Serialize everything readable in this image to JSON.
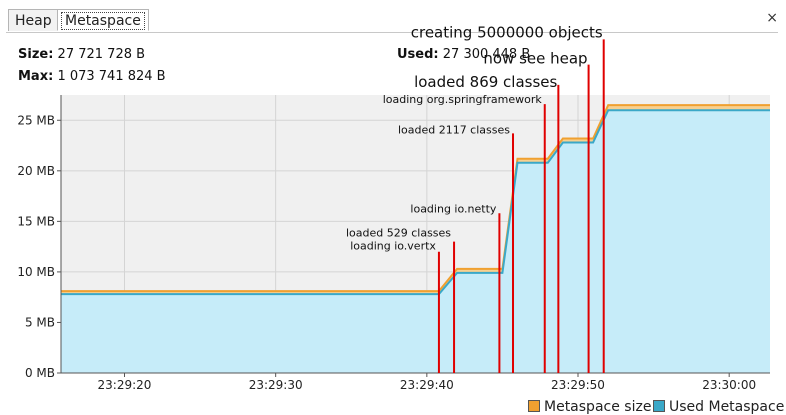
{
  "tabs": [
    {
      "label": "Heap",
      "active": false
    },
    {
      "label": "Metaspace",
      "active": true
    }
  ],
  "close_label": "×",
  "stats": {
    "size_label": "Size:",
    "size_value": "27 721 728 B",
    "max_label": "Max:",
    "max_value": "1 073 741 824 B",
    "used_label": "Used:",
    "used_value": "27 300 448 B"
  },
  "colors": {
    "metaspace_size": "#f0a030",
    "used_metaspace": "#3aa8c8",
    "used_fill": "#c6ecf9",
    "marker": "#e00000",
    "plot_bg": "#f0f0f0"
  },
  "legend": [
    {
      "label": "Metaspace size",
      "color": "#f0a030"
    },
    {
      "label": "Used Metaspace",
      "color": "#3aa8c8"
    }
  ],
  "chart_data": {
    "type": "area",
    "xlabel": "",
    "ylabel": "",
    "x_ticks": [
      "23:29:20",
      "23:29:30",
      "23:29:40",
      "23:29:50",
      "23:30:00"
    ],
    "y_ticks": [
      "0 MB",
      "5 MB",
      "10 MB",
      "15 MB",
      "20 MB",
      "25 MB"
    ],
    "ylim": [
      0,
      27.5
    ],
    "xlim_seconds": [
      15.8,
      62.7
    ],
    "grid": true,
    "legend_position": "bottom-right",
    "series": [
      {
        "name": "Metaspace size",
        "x": [
          15.8,
          40.8,
          42.0,
          45.0,
          46.0,
          48.0,
          49.0,
          51.0,
          52.0,
          62.7
        ],
        "values": [
          8.1,
          8.1,
          10.3,
          10.3,
          21.2,
          21.2,
          23.2,
          23.2,
          26.5,
          26.5
        ]
      },
      {
        "name": "Used Metaspace",
        "x": [
          15.8,
          40.8,
          42.0,
          45.0,
          46.0,
          48.0,
          49.0,
          51.0,
          52.0,
          62.7
        ],
        "values": [
          7.8,
          7.8,
          9.9,
          9.9,
          20.8,
          20.8,
          22.8,
          22.8,
          26.0,
          26.0
        ]
      }
    ],
    "annotations": [
      {
        "label": "loading io.vertx",
        "x": 40.8,
        "top": 12.0,
        "text_y": 12.2,
        "size": "small",
        "anchor": "end"
      },
      {
        "label": "loaded 529 classes",
        "x": 41.8,
        "top": 13.0,
        "text_y": 13.5,
        "size": "small",
        "anchor": "end"
      },
      {
        "label": "loading io.netty",
        "x": 44.8,
        "top": 15.8,
        "text_y": 15.9,
        "size": "small",
        "anchor": "end"
      },
      {
        "label": "loaded 2117 classes",
        "x": 45.7,
        "top": 23.7,
        "text_y": 23.7,
        "size": "small",
        "anchor": "end"
      },
      {
        "label": "loading org.springframework",
        "x": 47.8,
        "top": 26.6,
        "text_y": 26.7,
        "size": "small",
        "anchor": "end"
      },
      {
        "label": "loaded 869 classes",
        "x": 48.7,
        "top": 28.5,
        "text_y": 28.3,
        "size": "large",
        "anchor": "end"
      },
      {
        "label": "now see heap",
        "x": 50.7,
        "top": 30.5,
        "text_y": 30.6,
        "size": "large",
        "anchor": "end"
      },
      {
        "label": "creating 5000000 objects",
        "x": 51.7,
        "top": 33.0,
        "text_y": 33.2,
        "size": "large",
        "anchor": "end"
      }
    ]
  }
}
